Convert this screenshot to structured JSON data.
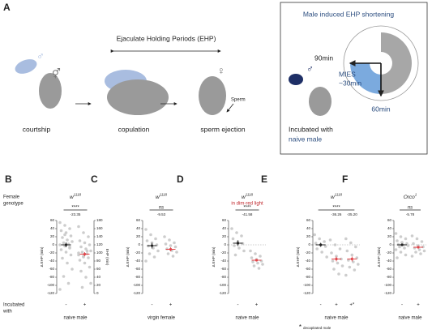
{
  "panel_a": {
    "label": "A",
    "ehp_label": "Ejaculate Holding Periods (EHP)",
    "steps": [
      "courtship",
      "copulation",
      "sperm ejection"
    ],
    "sperm": "Sperm",
    "symbols": {
      "male": "♂",
      "female": "♀",
      "mated": "⚥"
    },
    "inset": {
      "title": "Male induced EHP shortening",
      "t90": "90min",
      "mies": [
        "MIES",
        "~30min"
      ],
      "t60": "60min",
      "caption": [
        "Incubated with",
        "naive male"
      ],
      "male": "♂"
    }
  },
  "row_labels": {
    "genotype": [
      "Female",
      "genotype"
    ],
    "incubated": [
      "Incubated",
      "with"
    ]
  },
  "chart_data": [
    {
      "type": "strip",
      "panel": "B",
      "genotype_base": "w",
      "genotype_sup": "1118",
      "significance": "****",
      "annotations": [
        "-23.35"
      ],
      "ylabel": "Δ EHP (min)",
      "ylim": [
        -120,
        60
      ],
      "yticks": [
        -120,
        -100,
        -80,
        -60,
        -40,
        -20,
        0,
        20,
        40,
        60
      ],
      "y2label": "EHP (min)",
      "y2lim": [
        0,
        180
      ],
      "y2ticks": [
        0,
        20,
        40,
        60,
        80,
        100,
        120,
        140,
        160,
        180
      ],
      "zero_line": false,
      "categories": [
        "-",
        "+"
      ],
      "xlabel": "naive male",
      "point_color": "#c8c8c8",
      "series": [
        {
          "color": "#222222",
          "mean": 0,
          "error": 6,
          "values": [
            55,
            48,
            40,
            35,
            30,
            22,
            18,
            12,
            8,
            5,
            2,
            0,
            -3,
            -8,
            -12,
            -18,
            -25,
            -33,
            -45,
            -60,
            -78,
            -95,
            -110,
            25,
            -5
          ]
        },
        {
          "color": "#e0454a",
          "mean": -23,
          "error": 5,
          "values": [
            45,
            30,
            20,
            10,
            5,
            0,
            -5,
            -10,
            -15,
            -18,
            -22,
            -25,
            -28,
            -32,
            -38,
            -45,
            -55,
            -65,
            -80,
            -95,
            -105,
            -15,
            -20,
            -30
          ]
        }
      ]
    },
    {
      "type": "strip",
      "panel": "C",
      "genotype_base": "w",
      "genotype_sup": "1118",
      "significance": "ns",
      "annotations": [
        "-9.53"
      ],
      "ylabel": "Δ EHP (min)",
      "ylim": [
        -120,
        60
      ],
      "yticks": [
        -120,
        -100,
        -80,
        -60,
        -40,
        -20,
        0,
        20,
        40,
        60
      ],
      "zero_line": false,
      "categories": [
        "-",
        "+"
      ],
      "xlabel": "virgin female",
      "point_color": "#c8c8c8",
      "series": [
        {
          "color": "#222222",
          "mean": -2,
          "error": 7,
          "values": [
            38,
            25,
            15,
            10,
            5,
            0,
            -3,
            -8,
            -15,
            -22,
            -30,
            -40
          ]
        },
        {
          "color": "#e0454a",
          "mean": -11,
          "error": 5,
          "values": [
            20,
            12,
            5,
            2,
            -2,
            -5,
            -10,
            -14,
            -18,
            -22,
            -28
          ]
        }
      ]
    },
    {
      "type": "strip",
      "panel": "D",
      "genotype_base": "w",
      "genotype_sup": "1118",
      "condition": "in dim-red light",
      "significance": "****",
      "annotations": [
        "-41.58"
      ],
      "ylabel": "Δ EHP (min)",
      "ylim": [
        -120,
        60
      ],
      "yticks": [
        -120,
        -100,
        -80,
        -60,
        -40,
        -20,
        0,
        20,
        40,
        60
      ],
      "zero_line": true,
      "categories": [
        "-",
        "+"
      ],
      "xlabel": "naive male",
      "point_color": "#c8c8c8",
      "series": [
        {
          "color": "#222222",
          "mean": 4,
          "error": 7,
          "values": [
            40,
            30,
            22,
            15,
            8,
            3,
            -2,
            -8,
            -15,
            -25
          ]
        },
        {
          "color": "#e0454a",
          "mean": -38,
          "error": 3,
          "values": [
            -15,
            -22,
            -28,
            -32,
            -36,
            -40,
            -42,
            -45,
            -48,
            -52,
            -58
          ]
        }
      ]
    },
    {
      "type": "strip",
      "panel": "E",
      "genotype_base": "w",
      "genotype_sup": "1118",
      "significance": "****",
      "annotations": [
        "-36.26",
        "-35.20"
      ],
      "ylabel": "Δ EHP (min)",
      "ylim": [
        -120,
        60
      ],
      "yticks": [
        -120,
        -100,
        -80,
        -60,
        -40,
        -20,
        0,
        20,
        40,
        60
      ],
      "zero_line": true,
      "categories": [
        "-",
        "+",
        "+*"
      ],
      "xlabel": "naive male",
      "footnote_mark": "*",
      "footnote": "decapitated male",
      "point_color": "#c8c8c8",
      "series": [
        {
          "color": "#222222",
          "mean": 0,
          "error": 5,
          "values": [
            25,
            15,
            8,
            4,
            0,
            -4,
            -10,
            -18,
            -30
          ]
        },
        {
          "color": "#e0454a",
          "mean": -35,
          "error": 6,
          "values": [
            12,
            0,
            -10,
            -20,
            -28,
            -35,
            -40,
            -45,
            -52,
            -60,
            -72
          ]
        },
        {
          "color": "#e0454a",
          "mean": -35,
          "error": 6,
          "values": [
            15,
            5,
            -5,
            -15,
            -25,
            -32,
            -38,
            -42,
            -48,
            -55,
            -62,
            -75
          ]
        }
      ]
    },
    {
      "type": "strip",
      "panel": "F",
      "genotype_base": "Orco",
      "genotype_sup": "1",
      "significance": "ns",
      "annotations": [
        "-5.78"
      ],
      "ylabel": "Δ EHP (min)",
      "ylim": [
        -120,
        60
      ],
      "yticks": [
        -120,
        -100,
        -80,
        -60,
        -40,
        -20,
        0,
        20,
        40,
        60
      ],
      "zero_line": true,
      "categories": [
        "-",
        "+"
      ],
      "xlabel": "naive male",
      "point_color": "#c8c8c8",
      "series": [
        {
          "color": "#222222",
          "mean": 0,
          "error": 3,
          "values": [
            28,
            20,
            15,
            10,
            6,
            3,
            1,
            0,
            -2,
            -5,
            -8,
            -12,
            -18,
            -25,
            -32
          ]
        },
        {
          "color": "#e0454a",
          "mean": -6,
          "error": 3,
          "values": [
            22,
            15,
            8,
            3,
            -2,
            -5,
            -8,
            -12,
            -15,
            -18,
            -22,
            -28
          ]
        }
      ]
    }
  ]
}
